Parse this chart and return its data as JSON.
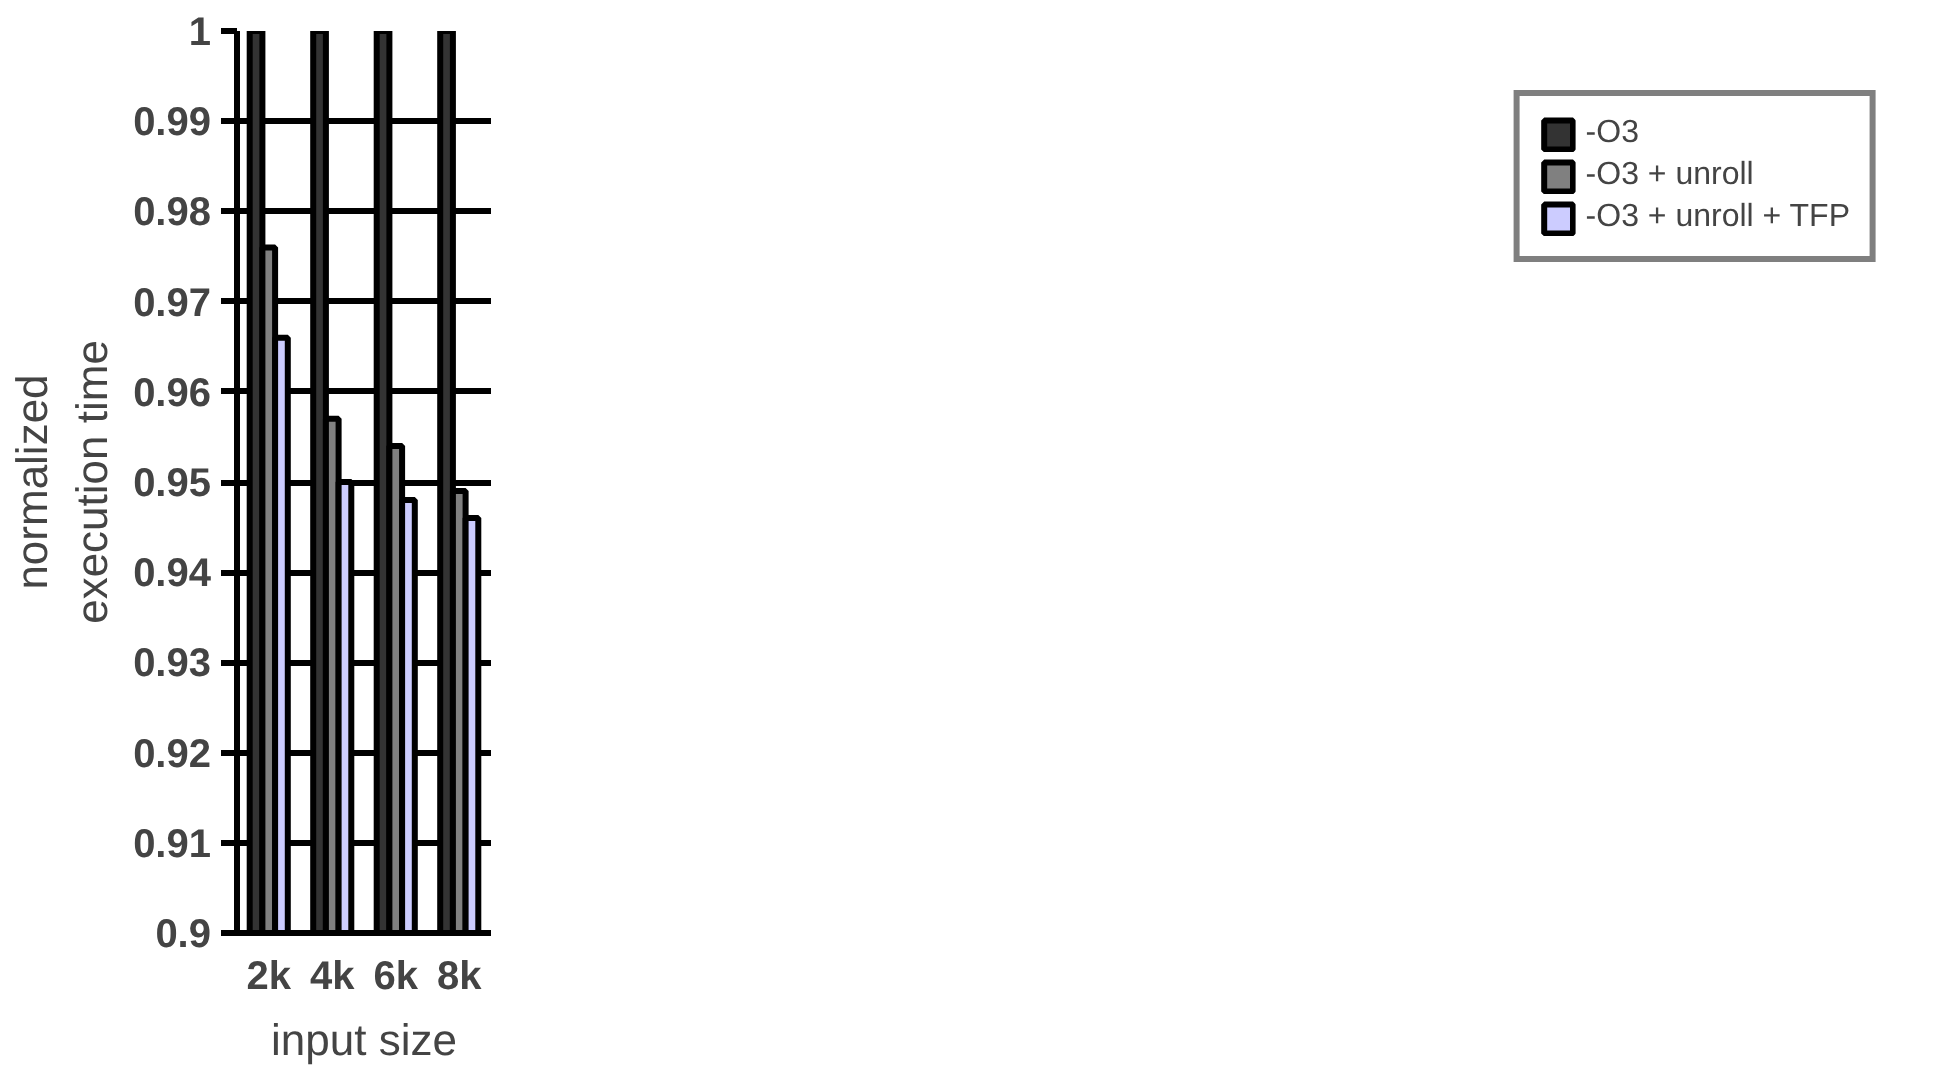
{
  "chart_data": {
    "type": "bar",
    "xlabel": "input size",
    "ylabel": "normalized\nexecution time",
    "categories": [
      "2k",
      "4k",
      "6k",
      "8k"
    ],
    "series": [
      {
        "name": "-O3",
        "color": "#333333",
        "values": [
          1,
          1,
          1,
          1
        ]
      },
      {
        "name": "-O3 + unroll",
        "color": "#808080",
        "values": [
          0.976,
          0.957,
          0.954,
          0.949
        ]
      },
      {
        "name": "-O3 + unroll + TFP",
        "color": "#ccccff",
        "values": [
          0.966,
          0.95,
          0.948,
          0.946
        ]
      }
    ],
    "ylim": [
      0.9,
      1
    ],
    "yticks": [
      0.9,
      0.91,
      0.92,
      0.93,
      0.94,
      0.95,
      0.96,
      0.97,
      0.98,
      0.99,
      1
    ],
    "grid": "y",
    "legend": "right"
  }
}
